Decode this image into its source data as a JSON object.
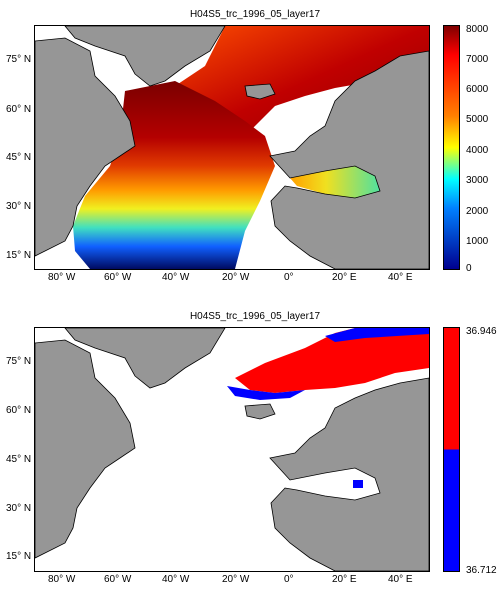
{
  "maps": [
    {
      "title": "H04S5_trc_1996_05_layer17",
      "colorbar": {
        "ticks": [
          "8000",
          "7000",
          "6000",
          "5000",
          "4000",
          "3000",
          "2000",
          "1000",
          "0"
        ],
        "min": 0,
        "max": 8000,
        "colormap": "jet"
      }
    },
    {
      "title": "H04S5_trc_1996_05_layer17",
      "colorbar": {
        "ticks": [
          "36.946",
          "36.712"
        ],
        "min": 36.712,
        "max": 36.946,
        "colors": [
          "#ff0000",
          "#0000ff"
        ]
      }
    }
  ],
  "axes": {
    "lat_labels": [
      "75° N",
      "60° N",
      "45° N",
      "30° N",
      "15° N"
    ],
    "lon_labels": [
      "80° W",
      "60° W",
      "40° W",
      "20° W",
      "0°",
      "20° E",
      "40° E"
    ]
  },
  "colors": {
    "land": "#969696",
    "ocean_nodata": "#ffffff"
  }
}
